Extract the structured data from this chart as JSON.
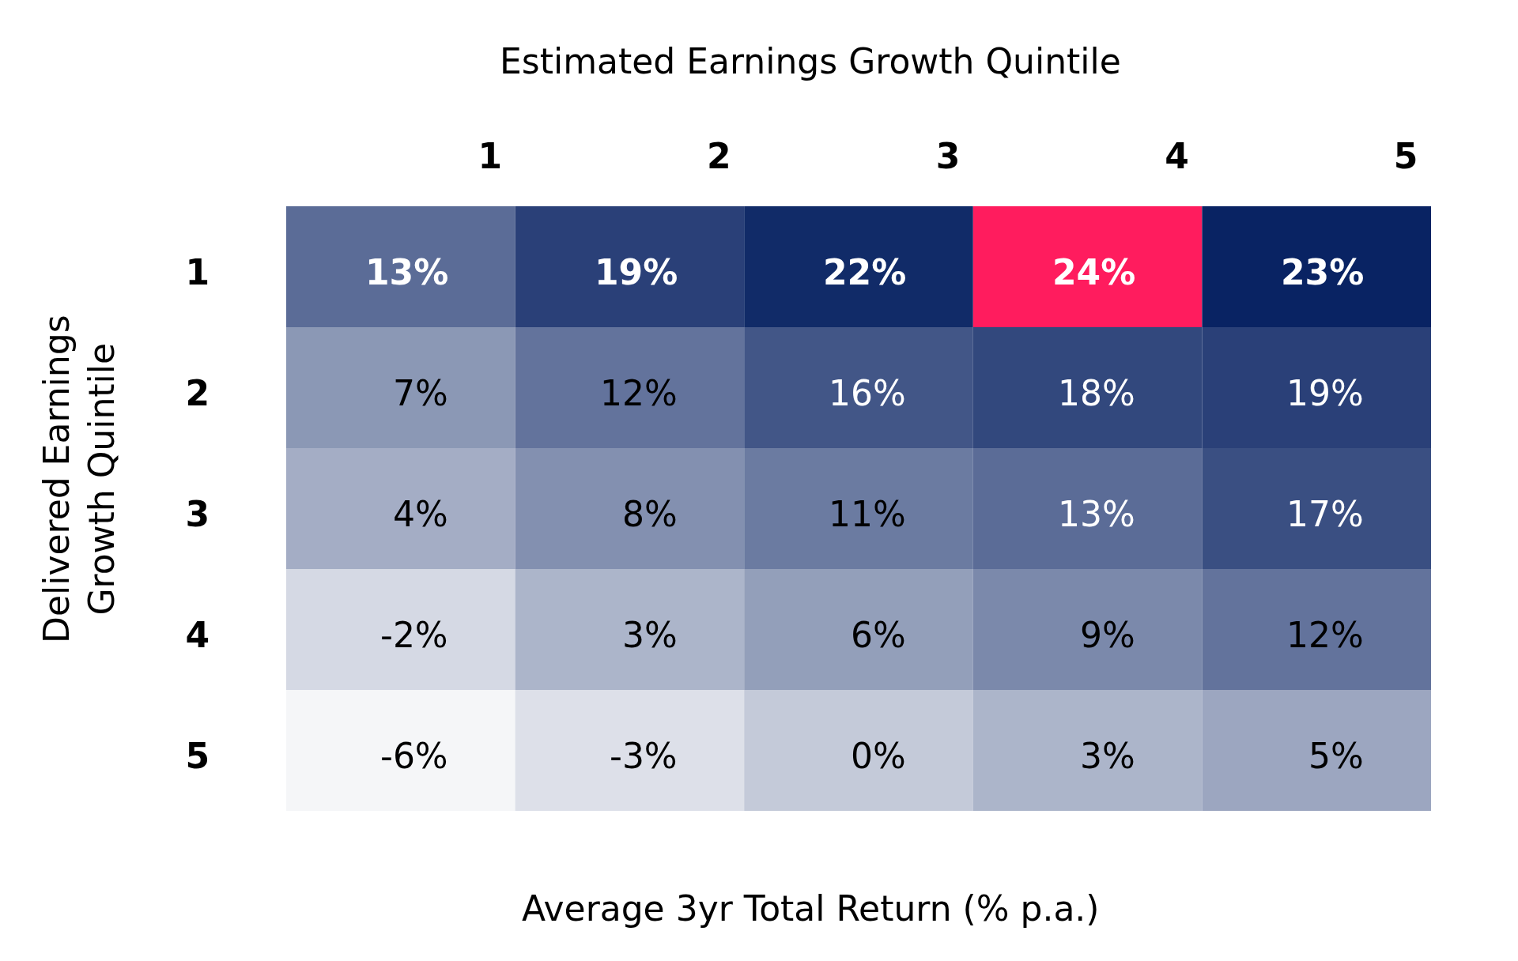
{
  "chart_data": {
    "type": "heatmap",
    "xlabel": "Estimated Earnings Growth Quintile",
    "ylabel": "Delivered Earnings\nGrowth Quintile",
    "annotations": [
      "Average 3yr Total Return (% p.a.)"
    ],
    "categories": [
      "1",
      "2",
      "3",
      "4",
      "5"
    ],
    "y_categories": [
      "1",
      "2",
      "3",
      "4",
      "5"
    ],
    "cells": [
      [
        13,
        19,
        22,
        24,
        23
      ],
      [
        7,
        12,
        16,
        18,
        19
      ],
      [
        4,
        8,
        11,
        13,
        17
      ],
      [
        -2,
        3,
        6,
        9,
        12
      ],
      [
        -6,
        -3,
        0,
        3,
        5
      ]
    ],
    "cell_labels": [
      [
        "13%",
        "19%",
        "22%",
        "24%",
        "23%"
      ],
      [
        "7%",
        "12%",
        "16%",
        "18%",
        "19%"
      ],
      [
        "4%",
        "8%",
        "11%",
        "13%",
        "17%"
      ],
      [
        "-2%",
        "3%",
        "6%",
        "9%",
        "12%"
      ],
      [
        "-6%",
        "-3%",
        "0%",
        "3%",
        "5%"
      ]
    ],
    "colors": [
      "#f5f6f8",
      "#011c5e"
    ]
  }
}
